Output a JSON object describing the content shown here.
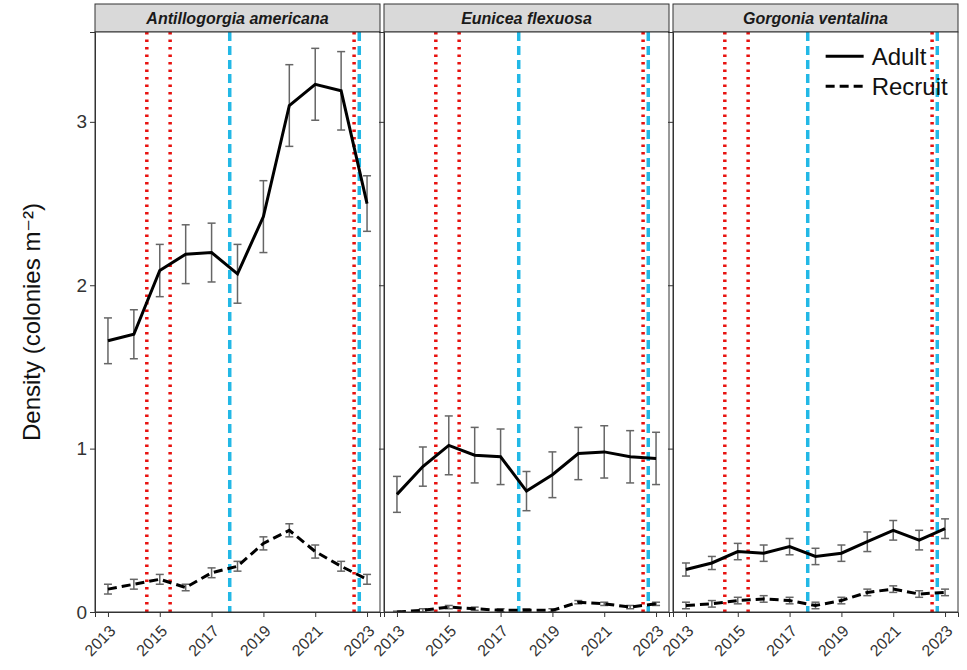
{
  "chart_data": [
    {
      "type": "line",
      "title": "Antillogorgia americana",
      "y_label": "Density (colonies m⁻²)",
      "x": [
        2013,
        2014,
        2015,
        2016,
        2017,
        2018,
        2019,
        2020,
        2021,
        2022,
        2023
      ],
      "series": [
        {
          "name": "Adult",
          "color": "#000000",
          "line_style": "solid",
          "values": [
            1.66,
            1.7,
            2.09,
            2.19,
            2.2,
            2.07,
            2.42,
            3.1,
            3.23,
            3.19,
            2.5
          ],
          "errors": [
            0.14,
            0.15,
            0.16,
            0.18,
            0.18,
            0.18,
            0.22,
            0.25,
            0.22,
            0.24,
            0.17
          ]
        },
        {
          "name": "Recruit",
          "color": "#000000",
          "line_style": "dashed",
          "values": [
            0.14,
            0.17,
            0.2,
            0.15,
            0.24,
            0.28,
            0.42,
            0.5,
            0.37,
            0.28,
            0.2
          ],
          "errors": [
            0.03,
            0.03,
            0.03,
            0.02,
            0.03,
            0.03,
            0.04,
            0.04,
            0.04,
            0.03,
            0.03
          ]
        }
      ],
      "vlines": [
        {
          "x": 2014.5,
          "color": "#e8110e",
          "line_style": "dotted"
        },
        {
          "x": 2015.4,
          "color": "#e8110e",
          "line_style": "dotted"
        },
        {
          "x": 2017.7,
          "color": "#22b8e6",
          "line_style": "dashed"
        },
        {
          "x": 2022.5,
          "color": "#e8110e",
          "line_style": "dotted"
        },
        {
          "x": 2022.7,
          "color": "#22b8e6",
          "line_style": "dashed"
        }
      ],
      "xlim": [
        2012.5,
        2023.5
      ],
      "ylim": [
        0,
        3.55
      ],
      "xticks": [
        2013,
        2015,
        2017,
        2019,
        2021,
        2023
      ],
      "yticks": [
        0,
        1,
        2,
        3
      ],
      "grid": false
    },
    {
      "type": "line",
      "title": "Eunicea flexuosa",
      "x": [
        2013,
        2014,
        2015,
        2016,
        2017,
        2018,
        2019,
        2020,
        2021,
        2022,
        2023
      ],
      "series": [
        {
          "name": "Adult",
          "color": "#000000",
          "line_style": "solid",
          "values": [
            0.72,
            0.89,
            1.02,
            0.96,
            0.95,
            0.74,
            0.84,
            0.97,
            0.98,
            0.95,
            0.94
          ],
          "errors": [
            0.11,
            0.12,
            0.18,
            0.17,
            0.17,
            0.12,
            0.14,
            0.16,
            0.16,
            0.16,
            0.16
          ]
        },
        {
          "name": "Recruit",
          "color": "#000000",
          "line_style": "dashed",
          "values": [
            0.0,
            0.01,
            0.03,
            0.02,
            0.01,
            0.01,
            0.01,
            0.06,
            0.05,
            0.03,
            0.05
          ],
          "errors": [
            0.005,
            0.01,
            0.01,
            0.01,
            0.01,
            0.01,
            0.01,
            0.01,
            0.01,
            0.01,
            0.01
          ]
        }
      ],
      "vlines": [
        {
          "x": 2014.5,
          "color": "#e8110e",
          "line_style": "dotted"
        },
        {
          "x": 2015.4,
          "color": "#e8110e",
          "line_style": "dotted"
        },
        {
          "x": 2017.7,
          "color": "#22b8e6",
          "line_style": "dashed"
        },
        {
          "x": 2022.5,
          "color": "#e8110e",
          "line_style": "dotted"
        },
        {
          "x": 2022.7,
          "color": "#22b8e6",
          "line_style": "dashed"
        }
      ],
      "xlim": [
        2012.5,
        2023.5
      ],
      "ylim": [
        0,
        3.55
      ],
      "xticks": [
        2013,
        2015,
        2017,
        2019,
        2021,
        2023
      ],
      "yticks": [
        0,
        1,
        2,
        3
      ],
      "grid": false,
      "tick_labels": "x"
    },
    {
      "type": "line",
      "title": "Gorgonia ventalina",
      "x": [
        2013,
        2014,
        2015,
        2016,
        2017,
        2018,
        2019,
        2020,
        2021,
        2022,
        2023
      ],
      "series": [
        {
          "name": "Adult",
          "color": "#000000",
          "line_style": "solid",
          "values": [
            0.26,
            0.3,
            0.37,
            0.36,
            0.4,
            0.34,
            0.36,
            0.43,
            0.5,
            0.44,
            0.51
          ],
          "errors": [
            0.04,
            0.04,
            0.05,
            0.05,
            0.05,
            0.05,
            0.05,
            0.06,
            0.06,
            0.06,
            0.06
          ]
        },
        {
          "name": "Recruit",
          "color": "#000000",
          "line_style": "dashed",
          "values": [
            0.04,
            0.05,
            0.07,
            0.08,
            0.07,
            0.04,
            0.07,
            0.12,
            0.14,
            0.11,
            0.12
          ],
          "errors": [
            0.02,
            0.02,
            0.02,
            0.02,
            0.02,
            0.02,
            0.02,
            0.02,
            0.02,
            0.02,
            0.02
          ]
        }
      ],
      "vlines": [
        {
          "x": 2014.5,
          "color": "#e8110e",
          "line_style": "dotted"
        },
        {
          "x": 2015.4,
          "color": "#e8110e",
          "line_style": "dotted"
        },
        {
          "x": 2017.7,
          "color": "#22b8e6",
          "line_style": "dashed"
        },
        {
          "x": 2022.5,
          "color": "#e8110e",
          "line_style": "dotted"
        },
        {
          "x": 2022.7,
          "color": "#22b8e6",
          "line_style": "dashed"
        }
      ],
      "xlim": [
        2012.5,
        2023.5
      ],
      "ylim": [
        0,
        3.55
      ],
      "xticks": [
        2013,
        2015,
        2017,
        2019,
        2021,
        2023
      ],
      "yticks": [
        0,
        1,
        2,
        3
      ],
      "grid": false,
      "tick_labels": "x",
      "legend": "top-right"
    }
  ]
}
